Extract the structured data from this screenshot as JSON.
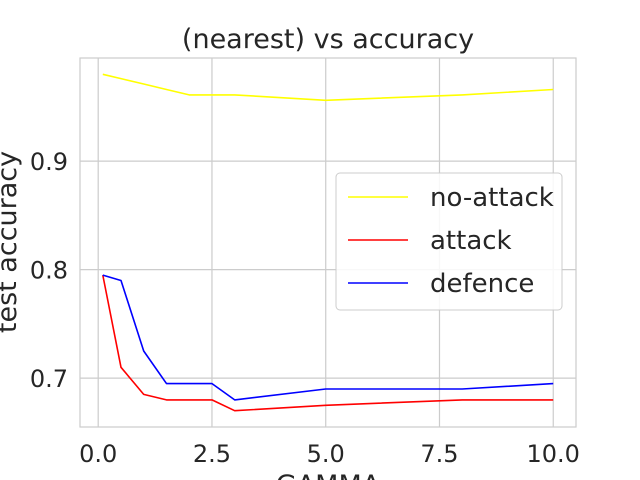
{
  "chart_data": {
    "type": "line",
    "title": "(nearest) vs accuracy",
    "xlabel": "GAMMA",
    "ylabel": "test accuracy",
    "xlim": [
      -0.4,
      10.5
    ],
    "ylim": [
      0.655,
      0.995
    ],
    "xticks": [
      0.0,
      2.5,
      5.0,
      7.5,
      10.0
    ],
    "xtick_labels": [
      "0.0",
      "2.5",
      "5.0",
      "7.5",
      "10.0"
    ],
    "yticks": [
      0.7,
      0.8,
      0.9
    ],
    "ytick_labels": [
      "0.7",
      "0.8",
      "0.9"
    ],
    "grid": true,
    "legend_position": "center-right",
    "series": [
      {
        "name": "no-attack",
        "color": "#ffff00",
        "x": [
          0.1,
          0.5,
          1,
          1.5,
          2,
          2.5,
          3,
          5,
          8,
          10
        ],
        "y": [
          0.98,
          0.976,
          0.971,
          0.966,
          0.961,
          0.961,
          0.961,
          0.956,
          0.961,
          0.966
        ]
      },
      {
        "name": "attack",
        "color": "#ff0000",
        "x": [
          0.1,
          0.5,
          1,
          1.5,
          2,
          2.5,
          3,
          5,
          8,
          10
        ],
        "y": [
          0.795,
          0.71,
          0.685,
          0.68,
          0.68,
          0.68,
          0.67,
          0.675,
          0.68,
          0.68
        ]
      },
      {
        "name": "defence",
        "color": "#0000ff",
        "x": [
          0.1,
          0.5,
          1,
          1.5,
          2,
          2.5,
          3,
          5,
          8,
          10
        ],
        "y": [
          0.795,
          0.79,
          0.725,
          0.695,
          0.695,
          0.695,
          0.68,
          0.69,
          0.69,
          0.695
        ]
      }
    ]
  }
}
